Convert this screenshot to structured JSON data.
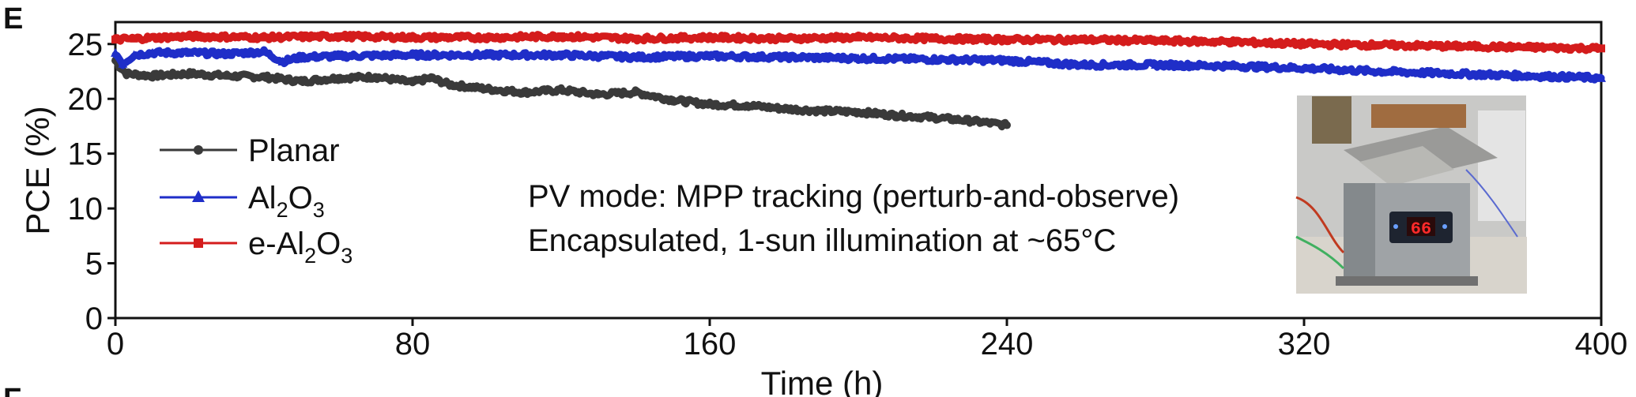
{
  "panel_labels": {
    "current": "E",
    "next": "F"
  },
  "inset_image_icon": "photo-of-heated-test-stage-with-red-display-66",
  "chart_data": {
    "type": "line",
    "xlabel": "Time (h)",
    "ylabel": "PCE (%)",
    "xlim": [
      0,
      400
    ],
    "ylim": [
      0,
      27
    ],
    "xticks": [
      0,
      80,
      160,
      240,
      320,
      400
    ],
    "yticks": [
      0,
      5,
      10,
      15,
      20,
      25
    ],
    "grid": false,
    "legend_placement": "left",
    "series": [
      {
        "name": "Planar",
        "label_main": "Planar",
        "label_sub": "",
        "color": "#3a3a3a",
        "marker": "circle",
        "x": [
          0,
          1,
          3,
          10,
          20,
          30,
          40,
          50,
          60,
          70,
          80,
          85,
          90,
          100,
          110,
          120,
          130,
          140,
          150,
          160,
          170,
          180,
          190,
          200,
          210,
          220,
          230,
          240
        ],
        "y": [
          23.5,
          23.0,
          22.3,
          22.1,
          22.3,
          22.1,
          22.0,
          21.6,
          21.9,
          22.0,
          21.5,
          21.9,
          21.3,
          20.9,
          20.6,
          20.8,
          20.4,
          20.6,
          19.9,
          19.5,
          19.4,
          19.1,
          18.9,
          18.8,
          18.5,
          18.3,
          18.0,
          17.6
        ]
      },
      {
        "name": "Al2O3",
        "label_main": "Al",
        "label_sub": "2",
        "label_main2": "O",
        "label_sub2": "3",
        "color": "#1f2ec8",
        "marker": "triangle",
        "x": [
          0,
          2,
          5,
          10,
          20,
          30,
          40,
          45,
          50,
          60,
          80,
          100,
          120,
          140,
          160,
          180,
          200,
          220,
          240,
          260,
          280,
          300,
          320,
          340,
          360,
          380,
          400
        ],
        "y": [
          24.2,
          23.2,
          24.0,
          24.2,
          24.2,
          24.1,
          24.3,
          23.4,
          23.8,
          23.9,
          24.0,
          24.0,
          24.0,
          23.8,
          23.9,
          23.8,
          23.7,
          23.6,
          23.5,
          23.1,
          23.1,
          23.0,
          22.8,
          22.5,
          22.3,
          22.1,
          21.9
        ]
      },
      {
        "name": "e-Al2O3",
        "label_main": "e-Al",
        "label_sub": "2",
        "label_main2": "O",
        "label_sub2": "3",
        "color": "#d41c1c",
        "marker": "square",
        "x": [
          0,
          5,
          20,
          40,
          60,
          80,
          100,
          120,
          140,
          160,
          180,
          200,
          220,
          240,
          260,
          280,
          300,
          320,
          340,
          360,
          380,
          400
        ],
        "y": [
          25.4,
          25.5,
          25.7,
          25.6,
          25.7,
          25.6,
          25.6,
          25.7,
          25.5,
          25.6,
          25.5,
          25.6,
          25.5,
          25.4,
          25.4,
          25.3,
          25.2,
          25.0,
          24.9,
          24.8,
          24.7,
          24.6
        ]
      }
    ],
    "annotations": [
      "PV mode: MPP tracking (perturb-and-observe)",
      "Encapsulated, 1-sun illumination at ~65°C"
    ],
    "inset_display_value": "66"
  }
}
